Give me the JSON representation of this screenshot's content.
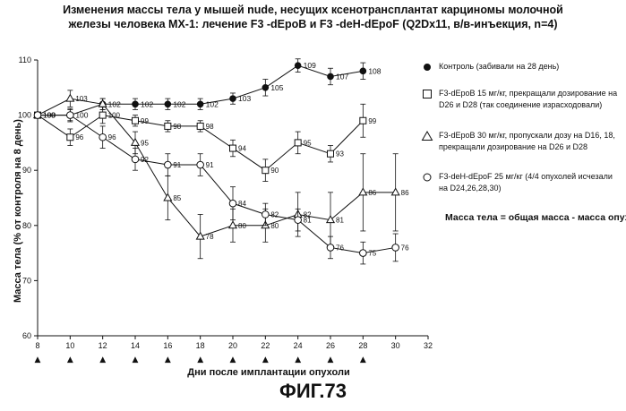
{
  "figure_label": "ФИГ.73",
  "note": "Масса тела = общая масса - масса опухоли",
  "chart_data": {
    "type": "line",
    "title_lines": [
      "Изменения массы тела у мышей nude, несущих ксенотрансплантат карциномы молочной",
      "железы человека MX-1: лечение F3 -dEpoB и F3 -deH-dEpoF (Q2Dx11, в/в-инъекция, n=4)"
    ],
    "xlabel": "Дни после имплантации опухоли",
    "ylabel": "Масса тела (% от контроля на 8 день)",
    "xlim": [
      8,
      32
    ],
    "ylim": [
      60,
      110
    ],
    "xticks": [
      8,
      10,
      12,
      14,
      16,
      18,
      20,
      22,
      24,
      26,
      28,
      30,
      32
    ],
    "yticks": [
      60,
      70,
      80,
      90,
      100,
      110
    ],
    "dosing_days": [
      8,
      10,
      12,
      14,
      16,
      18,
      20,
      22,
      24,
      26,
      28
    ],
    "dosing_marker": "▲",
    "legend_placement": "right",
    "series": [
      {
        "name": "Контроль (забивали на 28 день)",
        "marker": "filled-circle",
        "x": [
          8,
          10,
          12,
          14,
          16,
          18,
          20,
          22,
          24,
          26,
          28
        ],
        "y": [
          100,
          100,
          102,
          102,
          102,
          102,
          103,
          105,
          109,
          107,
          108
        ],
        "err": [
          0,
          1.2,
          1.0,
          1.0,
          1.0,
          1.0,
          1.0,
          1.5,
          1.2,
          1.5,
          1.5
        ],
        "labels": [
          "100",
          "100",
          "102",
          "102",
          "102",
          "102",
          "103",
          "105",
          "109",
          "107",
          "108"
        ]
      },
      {
        "name": "F3-dEpoB  15 мг/кг, прекращали дозирование на D26 и D28 (так соединение израсходовали)",
        "marker": "square",
        "x": [
          8,
          10,
          12,
          14,
          16,
          18,
          20,
          22,
          24,
          26,
          28
        ],
        "y": [
          100,
          96,
          100,
          99,
          98,
          98,
          94,
          90,
          95,
          93,
          99
        ],
        "err": [
          0,
          1.5,
          1.5,
          1.0,
          1.0,
          1.0,
          1.5,
          2.0,
          2.0,
          1.5,
          3.0
        ],
        "labels": [
          "",
          "96",
          "100",
          "99",
          "98",
          "98",
          "94",
          "90",
          "95",
          "93",
          "99"
        ]
      },
      {
        "name": "F3-dEpoB 30 мг/кг, пропускали дозу на D16, 18, прекращали дозирование на D26 и D28",
        "marker": "triangle",
        "x": [
          8,
          10,
          12,
          14,
          16,
          18,
          20,
          22,
          24,
          26,
          28,
          30
        ],
        "y": [
          100,
          103,
          102,
          95,
          85,
          78,
          80,
          80,
          82,
          81,
          86,
          86
        ],
        "err": [
          0,
          1.5,
          1.0,
          2.0,
          4.0,
          4.0,
          3.0,
          3.0,
          4.0,
          5.0,
          7.0,
          7.0
        ],
        "labels": [
          "",
          "103",
          "",
          "95",
          "85",
          "78",
          "80",
          "80",
          "82",
          "81",
          "86",
          "86"
        ]
      },
      {
        "name": "F3-deH-dEpoF 25 мг/кг (4/4 опухолей исчезали на D24,26,28,30)",
        "marker": "open-circle",
        "x": [
          8,
          10,
          12,
          14,
          16,
          18,
          20,
          22,
          24,
          26,
          28,
          30
        ],
        "y": [
          100,
          100,
          96,
          92,
          91,
          91,
          84,
          82,
          81,
          76,
          75,
          76
        ],
        "err": [
          0,
          1.0,
          2.0,
          2.0,
          2.0,
          2.0,
          3.0,
          2.0,
          2.0,
          2.0,
          2.0,
          2.5
        ],
        "labels": [
          "100",
          "",
          "96",
          "92",
          "91",
          "91",
          "84",
          "82",
          "81",
          "76",
          "75",
          "76"
        ]
      }
    ]
  },
  "legend": [
    {
      "marker": "filled-circle",
      "text": "Контроль (забивали на 28 день)"
    },
    {
      "marker": "square",
      "text": "F3-dEpoB  15 мг/кг, прекращали дозирование на D26 и D28 (так соединение израсходовали)"
    },
    {
      "marker": "triangle",
      "text": "F3-dEpoB 30 мг/кг, пропускали дозу на D16, 18, прекращали дозирование на D26 и D28"
    },
    {
      "marker": "open-circle",
      "text": "F3-deH-dEpoF 25 мг/кг (4/4 опухолей исчезали на D24,26,28,30)"
    }
  ]
}
